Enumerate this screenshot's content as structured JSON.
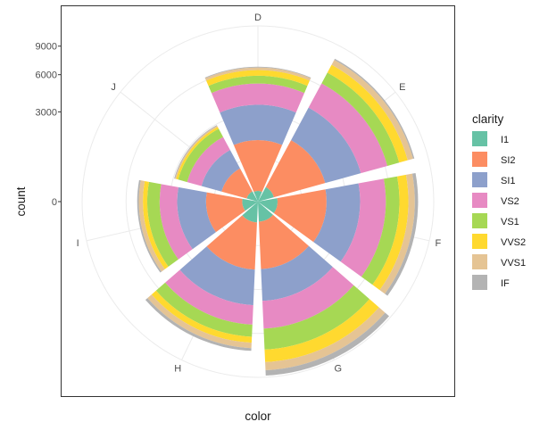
{
  "chart_data": {
    "type": "bar",
    "coord": "polar",
    "xlabel": "color",
    "ylabel": "count",
    "categories": [
      "D",
      "E",
      "F",
      "G",
      "H",
      "I",
      "J"
    ],
    "y_ticks": [
      0,
      3000,
      6000,
      9000
    ],
    "ylim": [
      0,
      11500
    ],
    "grid": true,
    "legend": {
      "title": "clarity",
      "position": "right"
    },
    "series": [
      {
        "name": "I1",
        "color": "#66C2A5",
        "values": [
          42,
          102,
          143,
          150,
          162,
          92,
          50
        ]
      },
      {
        "name": "SI2",
        "color": "#FC8D62",
        "values": [
          1370,
          1713,
          1609,
          1548,
          1563,
          912,
          479
        ]
      },
      {
        "name": "SI1",
        "color": "#8DA0CB",
        "values": [
          2083,
          2426,
          2131,
          1976,
          2275,
          1424,
          750
        ]
      },
      {
        "name": "VS2",
        "color": "#E78AC3",
        "values": [
          1697,
          2470,
          2201,
          2347,
          1643,
          1169,
          731
        ]
      },
      {
        "name": "VS1",
        "color": "#A6D854",
        "values": [
          705,
          1281,
          1364,
          2148,
          1169,
          962,
          542
        ]
      },
      {
        "name": "VVS2",
        "color": "#FFD92F",
        "values": [
          553,
          991,
          975,
          1443,
          608,
          365,
          131
        ]
      },
      {
        "name": "VVS1",
        "color": "#E5C494",
        "values": [
          252,
          656,
          734,
          999,
          585,
          355,
          74
        ]
      },
      {
        "name": "IF",
        "color": "#B3B3B3",
        "values": [
          73,
          158,
          385,
          681,
          299,
          143,
          51
        ]
      }
    ]
  }
}
